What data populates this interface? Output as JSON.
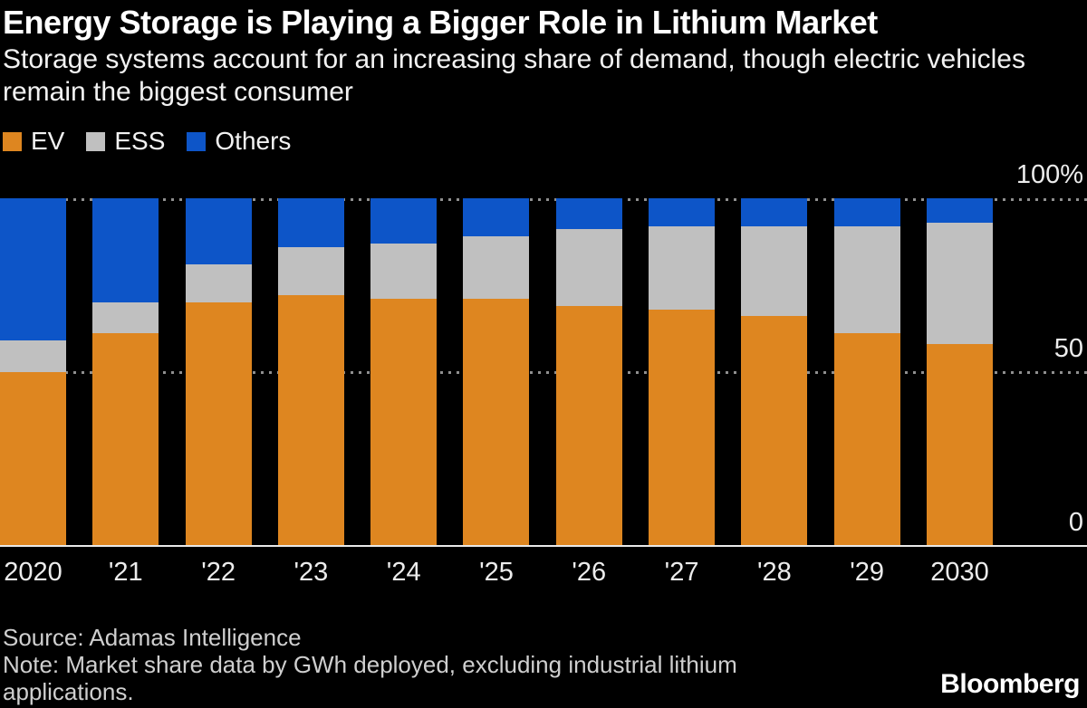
{
  "header": {
    "title": "Energy Storage is Playing a Bigger Role in Lithium Market",
    "subtitle": "Storage systems account for an increasing share of demand, though electric vehicles remain the biggest consumer"
  },
  "legend": [
    {
      "label": "EV",
      "color": "#DE8620"
    },
    {
      "label": "ESS",
      "color": "#C0C0C0"
    },
    {
      "label": "Others",
      "color": "#0D55C8"
    }
  ],
  "chart_data": {
    "type": "bar",
    "stacked": true,
    "title": "Energy Storage is Playing a Bigger Role in Lithium Market",
    "categories": [
      "2020",
      "'21",
      "'22",
      "'23",
      "'24",
      "'25",
      "'26",
      "'27",
      "'28",
      "'29",
      "2030"
    ],
    "series": [
      {
        "name": "EV",
        "color": "#DE8620",
        "values": [
          50,
          61,
          70,
          72,
          71,
          71,
          69,
          68,
          66,
          61,
          58
        ]
      },
      {
        "name": "ESS",
        "color": "#C0C0C0",
        "values": [
          9,
          9,
          11,
          14,
          16,
          18,
          22,
          24,
          26,
          31,
          35
        ]
      },
      {
        "name": "Others",
        "color": "#0D55C8",
        "values": [
          41,
          30,
          19,
          14,
          13,
          11,
          9,
          8,
          8,
          8,
          7
        ]
      }
    ],
    "unit": "% share of demand",
    "ylim": [
      0,
      100
    ],
    "yticks": [
      0,
      50,
      100
    ],
    "grid": "horizontal dotted at 50 and 100, solid baseline at 0",
    "legend_position": "top-left"
  },
  "yaxis": {
    "top": "100%",
    "mid": "50",
    "zero": "0"
  },
  "footer": {
    "source": "Source: Adamas Intelligence",
    "note": "Note: Market share data by GWh deployed, excluding industrial lithium applications.",
    "brand": "Bloomberg"
  }
}
